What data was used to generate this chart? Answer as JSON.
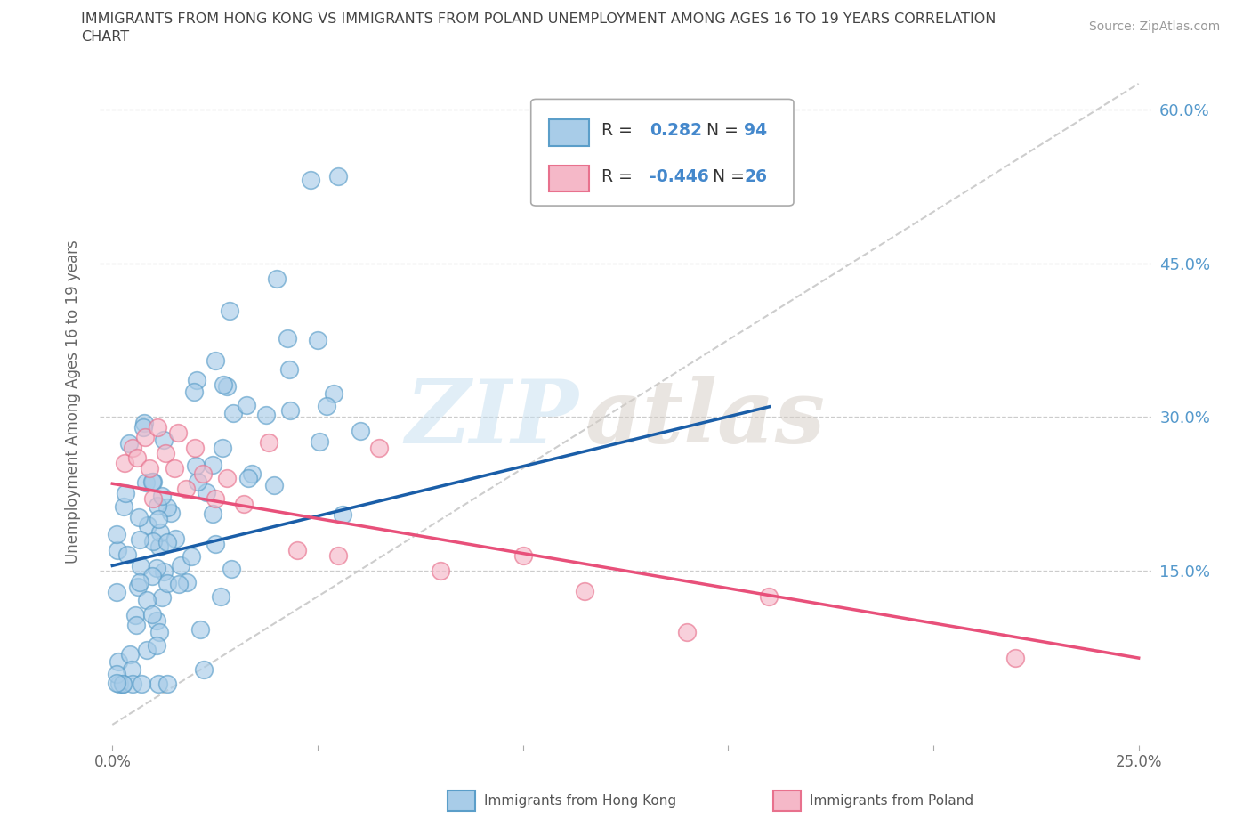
{
  "title_line1": "IMMIGRANTS FROM HONG KONG VS IMMIGRANTS FROM POLAND UNEMPLOYMENT AMONG AGES 16 TO 19 YEARS CORRELATION",
  "title_line2": "CHART",
  "source_text": "Source: ZipAtlas.com",
  "ylabel": "Unemployment Among Ages 16 to 19 years",
  "xlim": [
    0.0,
    0.25
  ],
  "ylim": [
    0.0,
    0.65
  ],
  "x_tick_positions": [
    0.0,
    0.05,
    0.1,
    0.15,
    0.2,
    0.25
  ],
  "x_tick_labels": [
    "0.0%",
    "",
    "",
    "",
    "",
    "25.0%"
  ],
  "y_tick_positions": [
    0.15,
    0.3,
    0.45,
    0.6
  ],
  "y_tick_labels": [
    "15.0%",
    "30.0%",
    "45.0%",
    "60.0%"
  ],
  "hk_color": "#a8cce8",
  "hk_edge_color": "#5b9ec9",
  "poland_color": "#f5b8c8",
  "poland_edge_color": "#e8718d",
  "hk_line_color": "#1a5ea8",
  "poland_line_color": "#e8507a",
  "diag_color": "#c8c8c8",
  "zip_color": "#c8dff0",
  "atlas_color": "#d8cfc8",
  "R_hk": 0.282,
  "N_hk": 94,
  "R_poland": -0.446,
  "N_poland": 26,
  "legend_text_color": "#333333",
  "legend_value_color": "#4488cc",
  "right_tick_color": "#5599cc",
  "ylabel_color": "#666666",
  "xtick_color": "#666666",
  "source_color": "#999999",
  "title_color": "#444444",
  "bottom_legend_color": "#555555"
}
